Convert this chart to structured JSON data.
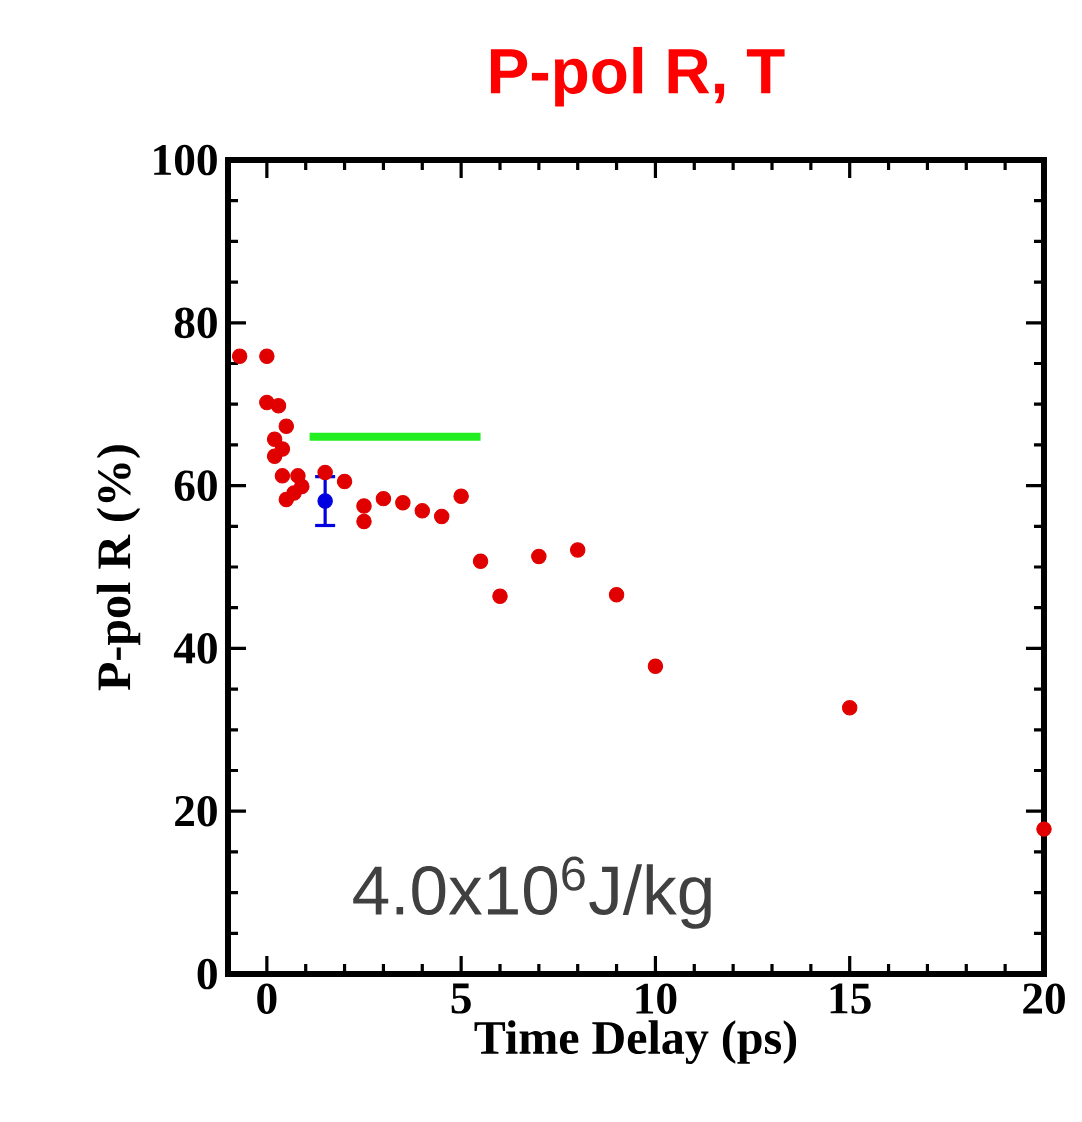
{
  "chart_data": {
    "type": "scatter",
    "title": "P-pol R, T",
    "xlabel": "Time Delay (ps)",
    "ylabel": "P-pol  R (%)",
    "annotations": [
      "4.0x10$^{6}$J/kg"
    ],
    "xlim": [
      -1,
      20
    ],
    "ylim": [
      0,
      100
    ],
    "xticks": [
      0,
      5,
      10,
      15,
      20
    ],
    "yticks": [
      0,
      20,
      40,
      60,
      80,
      100
    ],
    "marker": "circle",
    "grid": false,
    "series": [
      {
        "color": "#e00000",
        "x": [
          -0.7,
          0,
          0,
          0.3,
          0.5,
          0.2,
          0.4,
          0.2,
          0.4,
          0.8,
          0.9,
          0.5,
          0.7,
          1.5,
          2,
          2.5,
          2.5,
          3,
          3.5,
          4,
          4.5,
          5,
          5.5,
          6,
          7,
          8,
          9,
          10,
          15,
          20
        ],
        "values": [
          75.9,
          75.9,
          70.2,
          69.8,
          67.3,
          65.7,
          64.5,
          63.6,
          61.2,
          61.2,
          59.9,
          58.3,
          59.1,
          61.6,
          60.5,
          57.5,
          55.6,
          58.4,
          57.9,
          56.9,
          56.2,
          58.7,
          50.7,
          46.4,
          51.3,
          52.1,
          46.6,
          37.8,
          32.7,
          17.8
        ]
      },
      {
        "color": "#0000e0",
        "x": [
          1.5
        ],
        "values": [
          58.1
        ],
        "errors": [
          3
        ]
      },
      {
        "type": "line",
        "color": "#22ee22",
        "marker": "none",
        "x": [
          1.1,
          5.5
        ],
        "values": [
          66,
          66
        ]
      }
    ]
  }
}
